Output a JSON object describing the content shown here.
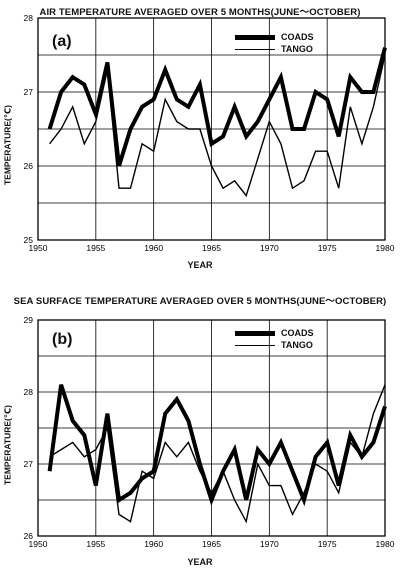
{
  "chart_data": [
    {
      "type": "line",
      "panel_label": "(a)",
      "title": "AIR TEMPERATURE AVERAGED OVER 5 MONTHS(JUNE〜OCTOBER)",
      "xlabel": "YEAR",
      "ylabel": "TEMPERATURE(℃)",
      "xlim": [
        1950,
        1980
      ],
      "ylim": [
        25,
        28
      ],
      "xticks": [
        "1950",
        "1955",
        "1960",
        "1965",
        "1970",
        "1975",
        "1980"
      ],
      "yticks": [
        "25",
        "26",
        "27",
        "28"
      ],
      "grid": true,
      "legend_position": "top-right",
      "x": [
        1951,
        1952,
        1953,
        1954,
        1955,
        1956,
        1957,
        1958,
        1959,
        1960,
        1961,
        1962,
        1963,
        1964,
        1965,
        1966,
        1967,
        1968,
        1969,
        1970,
        1971,
        1972,
        1973,
        1974,
        1975,
        1976,
        1977,
        1978,
        1979,
        1980
      ],
      "series": [
        {
          "name": "COADS",
          "style": "thick",
          "values": [
            26.5,
            27.0,
            27.2,
            27.1,
            26.7,
            27.4,
            26.0,
            26.5,
            26.8,
            26.9,
            27.3,
            26.9,
            26.8,
            27.1,
            26.3,
            26.4,
            26.8,
            26.4,
            26.6,
            26.9,
            27.2,
            26.5,
            26.5,
            27.0,
            26.9,
            26.4,
            27.2,
            27.0,
            27.0,
            27.6
          ]
        },
        {
          "name": "TANGO",
          "style": "thin",
          "values": [
            26.3,
            26.5,
            26.8,
            26.3,
            26.6,
            27.3,
            25.7,
            25.7,
            26.3,
            26.2,
            26.9,
            26.6,
            26.5,
            26.5,
            26.0,
            25.7,
            25.8,
            25.6,
            26.1,
            26.6,
            26.3,
            25.7,
            25.8,
            26.2,
            26.2,
            25.7,
            26.8,
            26.3,
            26.8,
            27.5
          ]
        }
      ]
    },
    {
      "type": "line",
      "panel_label": "(b)",
      "title": "SEA SURFACE TEMPERATURE AVERAGED OVER 5 MONTHS(JUNE〜OCTOBER)",
      "xlabel": "YEAR",
      "ylabel": "TEMPERATURE(℃)",
      "xlim": [
        1950,
        1980
      ],
      "ylim": [
        26,
        29
      ],
      "xticks": [
        "1950",
        "1955",
        "1960",
        "1965",
        "1970",
        "1975",
        "1980"
      ],
      "yticks": [
        "26",
        "27",
        "28",
        "29"
      ],
      "grid": true,
      "legend_position": "top-right",
      "x": [
        1951,
        1952,
        1953,
        1954,
        1955,
        1956,
        1957,
        1958,
        1959,
        1960,
        1961,
        1962,
        1963,
        1964,
        1965,
        1966,
        1967,
        1968,
        1969,
        1970,
        1971,
        1972,
        1973,
        1974,
        1975,
        1976,
        1977,
        1978,
        1979,
        1980
      ],
      "series": [
        {
          "name": "COADS",
          "style": "thick",
          "values": [
            26.9,
            28.1,
            27.6,
            27.4,
            26.7,
            27.7,
            26.5,
            26.6,
            26.8,
            26.9,
            27.7,
            27.9,
            27.6,
            27.0,
            26.5,
            26.9,
            27.2,
            26.5,
            27.2,
            27.0,
            27.3,
            26.9,
            26.5,
            27.1,
            27.3,
            26.7,
            27.4,
            27.1,
            27.3,
            27.8
          ]
        },
        {
          "name": "TANGO",
          "style": "thin",
          "values": [
            27.1,
            27.2,
            27.3,
            27.1,
            27.2,
            27.5,
            26.3,
            26.2,
            26.9,
            26.8,
            27.3,
            27.1,
            27.3,
            26.9,
            26.6,
            26.9,
            26.5,
            26.2,
            27.0,
            26.7,
            26.7,
            26.3,
            26.6,
            27.0,
            26.9,
            26.6,
            27.3,
            27.1,
            27.7,
            28.1
          ]
        }
      ]
    }
  ]
}
